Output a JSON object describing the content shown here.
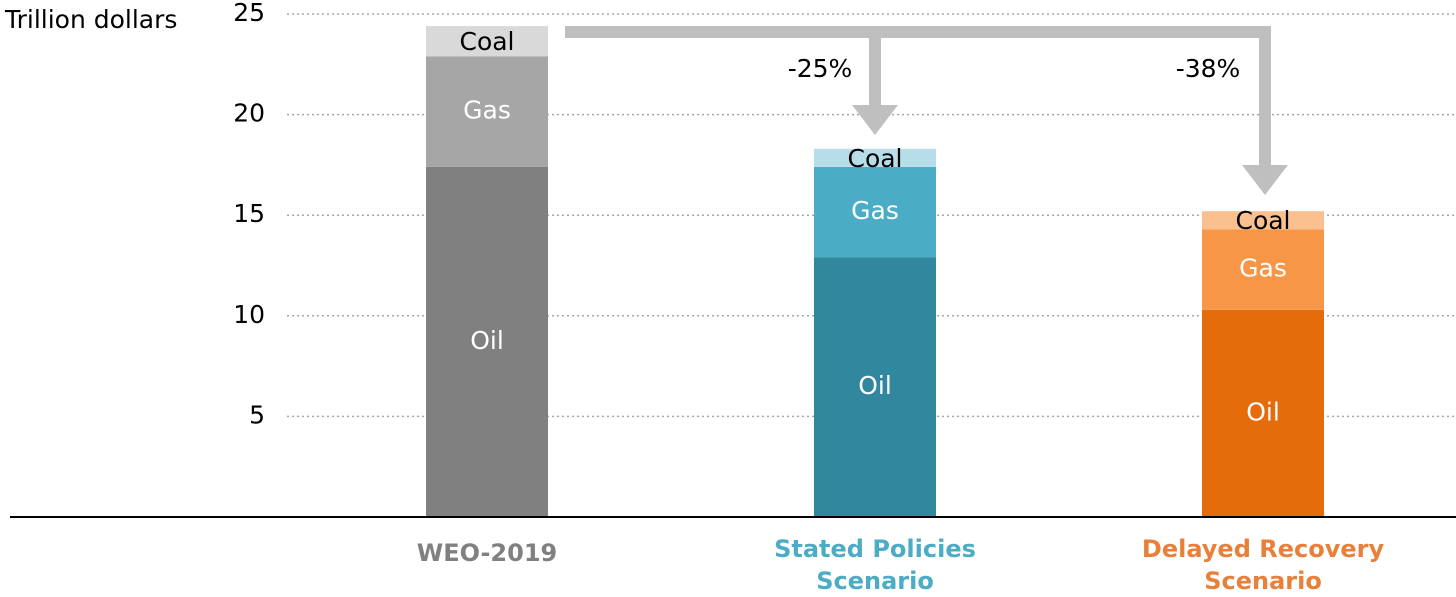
{
  "chart_data": {
    "type": "stacked_bar",
    "y_axis_label": "Trillion dollars",
    "categories": [
      "WEO-2019",
      "Stated Policies Scenario",
      "Delayed Recovery Scenario"
    ],
    "category_colors": [
      "#808080",
      "#4bacc6",
      "#e9803a"
    ],
    "series": [
      {
        "name": "Oil",
        "values": [
          17.4,
          12.9,
          10.3
        ],
        "color": [
          "#808080",
          "#31879e",
          "#e46c0a"
        ]
      },
      {
        "name": "Gas",
        "values": [
          5.5,
          4.5,
          4.0
        ],
        "color": [
          "#a6a6a6",
          "#4bacc6",
          "#f79646"
        ]
      },
      {
        "name": "Coal",
        "values": [
          1.5,
          0.9,
          0.9
        ],
        "color": [
          "#d9d9d9",
          "#b7dee8",
          "#fac090"
        ]
      }
    ],
    "annotations": [
      "-25%",
      "-38%"
    ],
    "ylim": [
      0,
      25
    ],
    "yticks": [
      5,
      10,
      15,
      20,
      25
    ],
    "grid": true
  }
}
